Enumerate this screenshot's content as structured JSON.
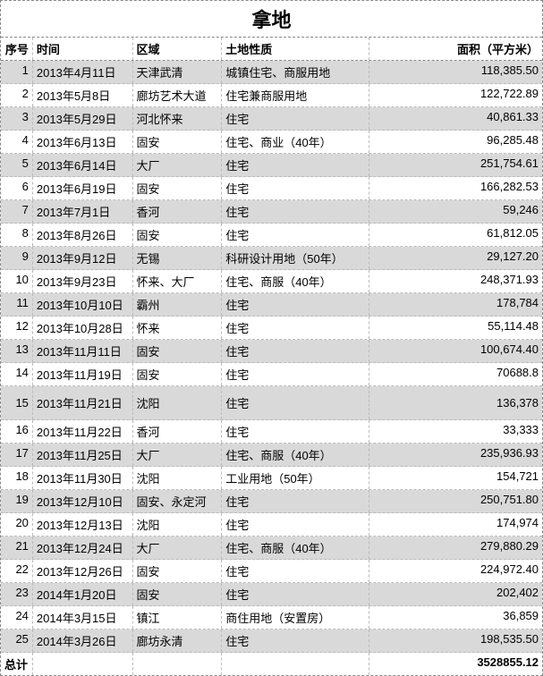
{
  "title": "拿地",
  "columns": [
    "序号",
    "时间",
    "区域",
    "土地性质",
    "面积（平方米）"
  ],
  "rows": [
    {
      "n": "1",
      "date": "2013年4月11日",
      "region": "天津武清",
      "type": "城镇住宅、商服用地",
      "area": "118,385.50"
    },
    {
      "n": "2",
      "date": "2013年5月8日",
      "region": "廊坊艺术大道",
      "type": "住宅兼商服用地",
      "area": "122,722.89"
    },
    {
      "n": "3",
      "date": "2013年5月29日",
      "region": "河北怀来",
      "type": "住宅",
      "area": "40,861.33"
    },
    {
      "n": "4",
      "date": "2013年6月13日",
      "region": "固安",
      "type": "住宅、商业（40年）",
      "area": "96,285.48"
    },
    {
      "n": "5",
      "date": "2013年6月14日",
      "region": "大厂",
      "type": "住宅",
      "area": "251,754.61"
    },
    {
      "n": "6",
      "date": "2013年6月19日",
      "region": "固安",
      "type": "住宅",
      "area": "166,282.53"
    },
    {
      "n": "7",
      "date": "2013年7月1日",
      "region": "香河",
      "type": "住宅",
      "area": "59,246"
    },
    {
      "n": "8",
      "date": "2013年8月26日",
      "region": "固安",
      "type": "住宅",
      "area": "61,812.05"
    },
    {
      "n": "9",
      "date": "2013年9月12日",
      "region": "无锡",
      "type": "科研设计用地（50年）",
      "area": "29,127.20"
    },
    {
      "n": "10",
      "date": "2013年9月23日",
      "region": "怀来、大厂",
      "type": "住宅、商服（40年）",
      "area": "248,371.93"
    },
    {
      "n": "11",
      "date": "2013年10月10日",
      "region": "霸州",
      "type": "住宅",
      "area": "178,784"
    },
    {
      "n": "12",
      "date": "2013年10月28日",
      "region": "怀来",
      "type": "住宅",
      "area": "55,114.48"
    },
    {
      "n": "13",
      "date": "2013年11月11日",
      "region": "固安",
      "type": "住宅",
      "area": "100,674.40"
    },
    {
      "n": "14",
      "date": "2013年11月19日",
      "region": "固安",
      "type": "住宅",
      "area": "70688.8"
    },
    {
      "n": "15",
      "date": "2013年11月21日",
      "region": "沈阳",
      "type": "住宅",
      "area": "136,378"
    },
    {
      "n": "16",
      "date": "2013年11月22日",
      "region": "香河",
      "type": "住宅",
      "area": "33,333"
    },
    {
      "n": "17",
      "date": "2013年11月25日",
      "region": "大厂",
      "type": "住宅、商服（40年）",
      "area": "235,936.93"
    },
    {
      "n": "18",
      "date": "2013年11月30日",
      "region": "沈阳",
      "type": "工业用地（50年）",
      "area": "154,721"
    },
    {
      "n": "19",
      "date": "2013年12月10日",
      "region": "固安、永定河",
      "type": "住宅",
      "area": "250,751.80"
    },
    {
      "n": "20",
      "date": "2013年12月13日",
      "region": "沈阳",
      "type": "住宅",
      "area": "174,974"
    },
    {
      "n": "21",
      "date": "2013年12月24日",
      "region": "大厂",
      "type": "住宅、商服（40年）",
      "area": "279,880.29"
    },
    {
      "n": "22",
      "date": "2013年12月26日",
      "region": "固安",
      "type": "住宅",
      "area": "224,972.40"
    },
    {
      "n": "23",
      "date": "2014年1月20日",
      "region": "固安",
      "type": "住宅",
      "area": "202,402"
    },
    {
      "n": "24",
      "date": "2014年3月15日",
      "region": "镇江",
      "type": "商住用地（安置房）",
      "area": "36,859"
    },
    {
      "n": "25",
      "date": "2014年3月26日",
      "region": "廊坊永清",
      "type": "住宅",
      "area": "198,535.50"
    }
  ],
  "total_label": "总计",
  "total_value": "3528855.12",
  "colors": {
    "odd_bg": "#d9d9d9",
    "even_bg": "#ffffff",
    "border": "#888888"
  }
}
